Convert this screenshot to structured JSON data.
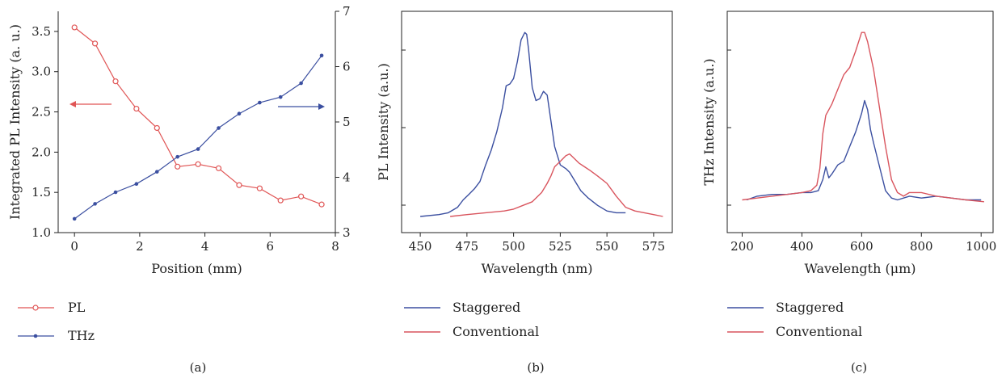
{
  "chart_data": [
    {
      "panel": "(a)",
      "type": "line",
      "xlabel": "Position (mm)",
      "ylabel": "Integrated PL Intensity (a. u.)",
      "xlim": [
        -0.5,
        8
      ],
      "ylim": [
        1.0,
        3.75
      ],
      "y2lim": [
        3,
        7
      ],
      "x_ticks": [
        "0",
        "2",
        "4",
        "6",
        "8"
      ],
      "y_ticks": [
        "1.0",
        "1.5",
        "2.0",
        "2.5",
        "3.0",
        "3.5"
      ],
      "y2_ticks": [
        "3",
        "4",
        "5",
        "6",
        "7"
      ],
      "series": [
        {
          "name": "PL",
          "axis": "left",
          "color": "#e05555",
          "marker": "open-circle",
          "x": [
            0,
            0.63,
            1.26,
            1.9,
            2.53,
            3.16,
            3.79,
            4.42,
            5.05,
            5.68,
            6.32,
            6.95,
            7.58
          ],
          "y": [
            3.55,
            3.35,
            2.88,
            2.54,
            2.3,
            1.82,
            1.85,
            1.8,
            1.59,
            1.55,
            1.4,
            1.45,
            1.35
          ]
        },
        {
          "name": "THz",
          "axis": "right",
          "color": "#3b4fa0",
          "marker": "filled-dot",
          "x": [
            0,
            0.63,
            1.26,
            1.9,
            2.53,
            3.16,
            3.79,
            4.42,
            5.05,
            5.68,
            6.32,
            6.95,
            7.58
          ],
          "y": [
            3.25,
            3.52,
            3.73,
            3.88,
            4.1,
            4.37,
            4.51,
            4.89,
            5.15,
            5.35,
            5.45,
            5.7,
            6.2
          ]
        }
      ],
      "arrows": [
        "PL series → left axis",
        "THz series → right axis"
      ],
      "legend_placement": "below"
    },
    {
      "panel": "(b)",
      "type": "line",
      "xlabel": "Wavelength (nm)",
      "ylabel": "PL Intensity (a.u.)",
      "xlim": [
        440,
        585
      ],
      "ylim": [
        0,
        1.08
      ],
      "x_ticks": [
        "450",
        "475",
        "500",
        "525",
        "550",
        "575"
      ],
      "series": [
        {
          "name": "Staggered",
          "color": "#3b4fa0",
          "x": [
            450,
            460,
            465,
            470,
            473,
            476,
            479,
            482,
            485,
            488,
            491,
            494,
            496,
            498,
            500,
            502,
            504,
            506,
            507,
            508,
            510,
            512,
            514,
            516,
            518,
            520,
            522,
            525,
            528,
            530,
            533,
            536,
            540,
            545,
            550,
            555,
            560
          ],
          "y": [
            0.0,
            0.01,
            0.02,
            0.05,
            0.09,
            0.12,
            0.15,
            0.19,
            0.28,
            0.36,
            0.46,
            0.59,
            0.71,
            0.72,
            0.75,
            0.84,
            0.96,
            1.0,
            0.99,
            0.91,
            0.7,
            0.63,
            0.64,
            0.68,
            0.66,
            0.52,
            0.38,
            0.28,
            0.26,
            0.24,
            0.19,
            0.14,
            0.1,
            0.06,
            0.03,
            0.02,
            0.02
          ]
        },
        {
          "name": "Conventional",
          "color": "#d9555e",
          "x": [
            466,
            475,
            485,
            495,
            500,
            505,
            510,
            515,
            518,
            520,
            522,
            525,
            528,
            530,
            532,
            535,
            538,
            541,
            545,
            550,
            555,
            560,
            565,
            570,
            575,
            580
          ],
          "y": [
            0.0,
            0.01,
            0.02,
            0.03,
            0.04,
            0.06,
            0.08,
            0.13,
            0.18,
            0.22,
            0.27,
            0.3,
            0.33,
            0.34,
            0.32,
            0.29,
            0.27,
            0.25,
            0.22,
            0.18,
            0.11,
            0.05,
            0.03,
            0.02,
            0.01,
            0.0
          ]
        }
      ],
      "legend_placement": "below"
    },
    {
      "panel": "(c)",
      "type": "line",
      "xlabel": "Wavelength (μm)",
      "ylabel": "THz Intensity (a.u.)",
      "xlim": [
        150,
        1040
      ],
      "ylim": [
        0,
        1.08
      ],
      "x_ticks": [
        "200",
        "400",
        "600",
        "800",
        "1000"
      ],
      "series": [
        {
          "name": "Staggered",
          "color": "#3b4fa0",
          "x": [
            215,
            250,
            300,
            350,
            400,
            430,
            455,
            470,
            480,
            490,
            500,
            520,
            540,
            560,
            580,
            600,
            610,
            620,
            630,
            640,
            660,
            680,
            700,
            720,
            760,
            800,
            850,
            900,
            950,
            1000
          ],
          "y": [
            0.09,
            0.11,
            0.12,
            0.12,
            0.13,
            0.13,
            0.14,
            0.2,
            0.27,
            0.21,
            0.23,
            0.28,
            0.3,
            0.38,
            0.46,
            0.56,
            0.63,
            0.58,
            0.47,
            0.4,
            0.27,
            0.14,
            0.1,
            0.09,
            0.11,
            0.1,
            0.11,
            0.1,
            0.09,
            0.09
          ]
        },
        {
          "name": "Conventional",
          "color": "#d9555e",
          "x": [
            200,
            250,
            300,
            350,
            400,
            430,
            450,
            460,
            470,
            480,
            490,
            500,
            520,
            540,
            560,
            580,
            600,
            610,
            620,
            640,
            660,
            680,
            700,
            720,
            740,
            760,
            800,
            850,
            900,
            950,
            1010
          ],
          "y": [
            0.09,
            0.1,
            0.11,
            0.12,
            0.13,
            0.14,
            0.17,
            0.26,
            0.45,
            0.55,
            0.58,
            0.61,
            0.69,
            0.77,
            0.81,
            0.9,
            1.0,
            1.0,
            0.95,
            0.8,
            0.59,
            0.38,
            0.2,
            0.13,
            0.11,
            0.13,
            0.13,
            0.11,
            0.1,
            0.09,
            0.08
          ]
        }
      ],
      "legend_placement": "below"
    }
  ]
}
